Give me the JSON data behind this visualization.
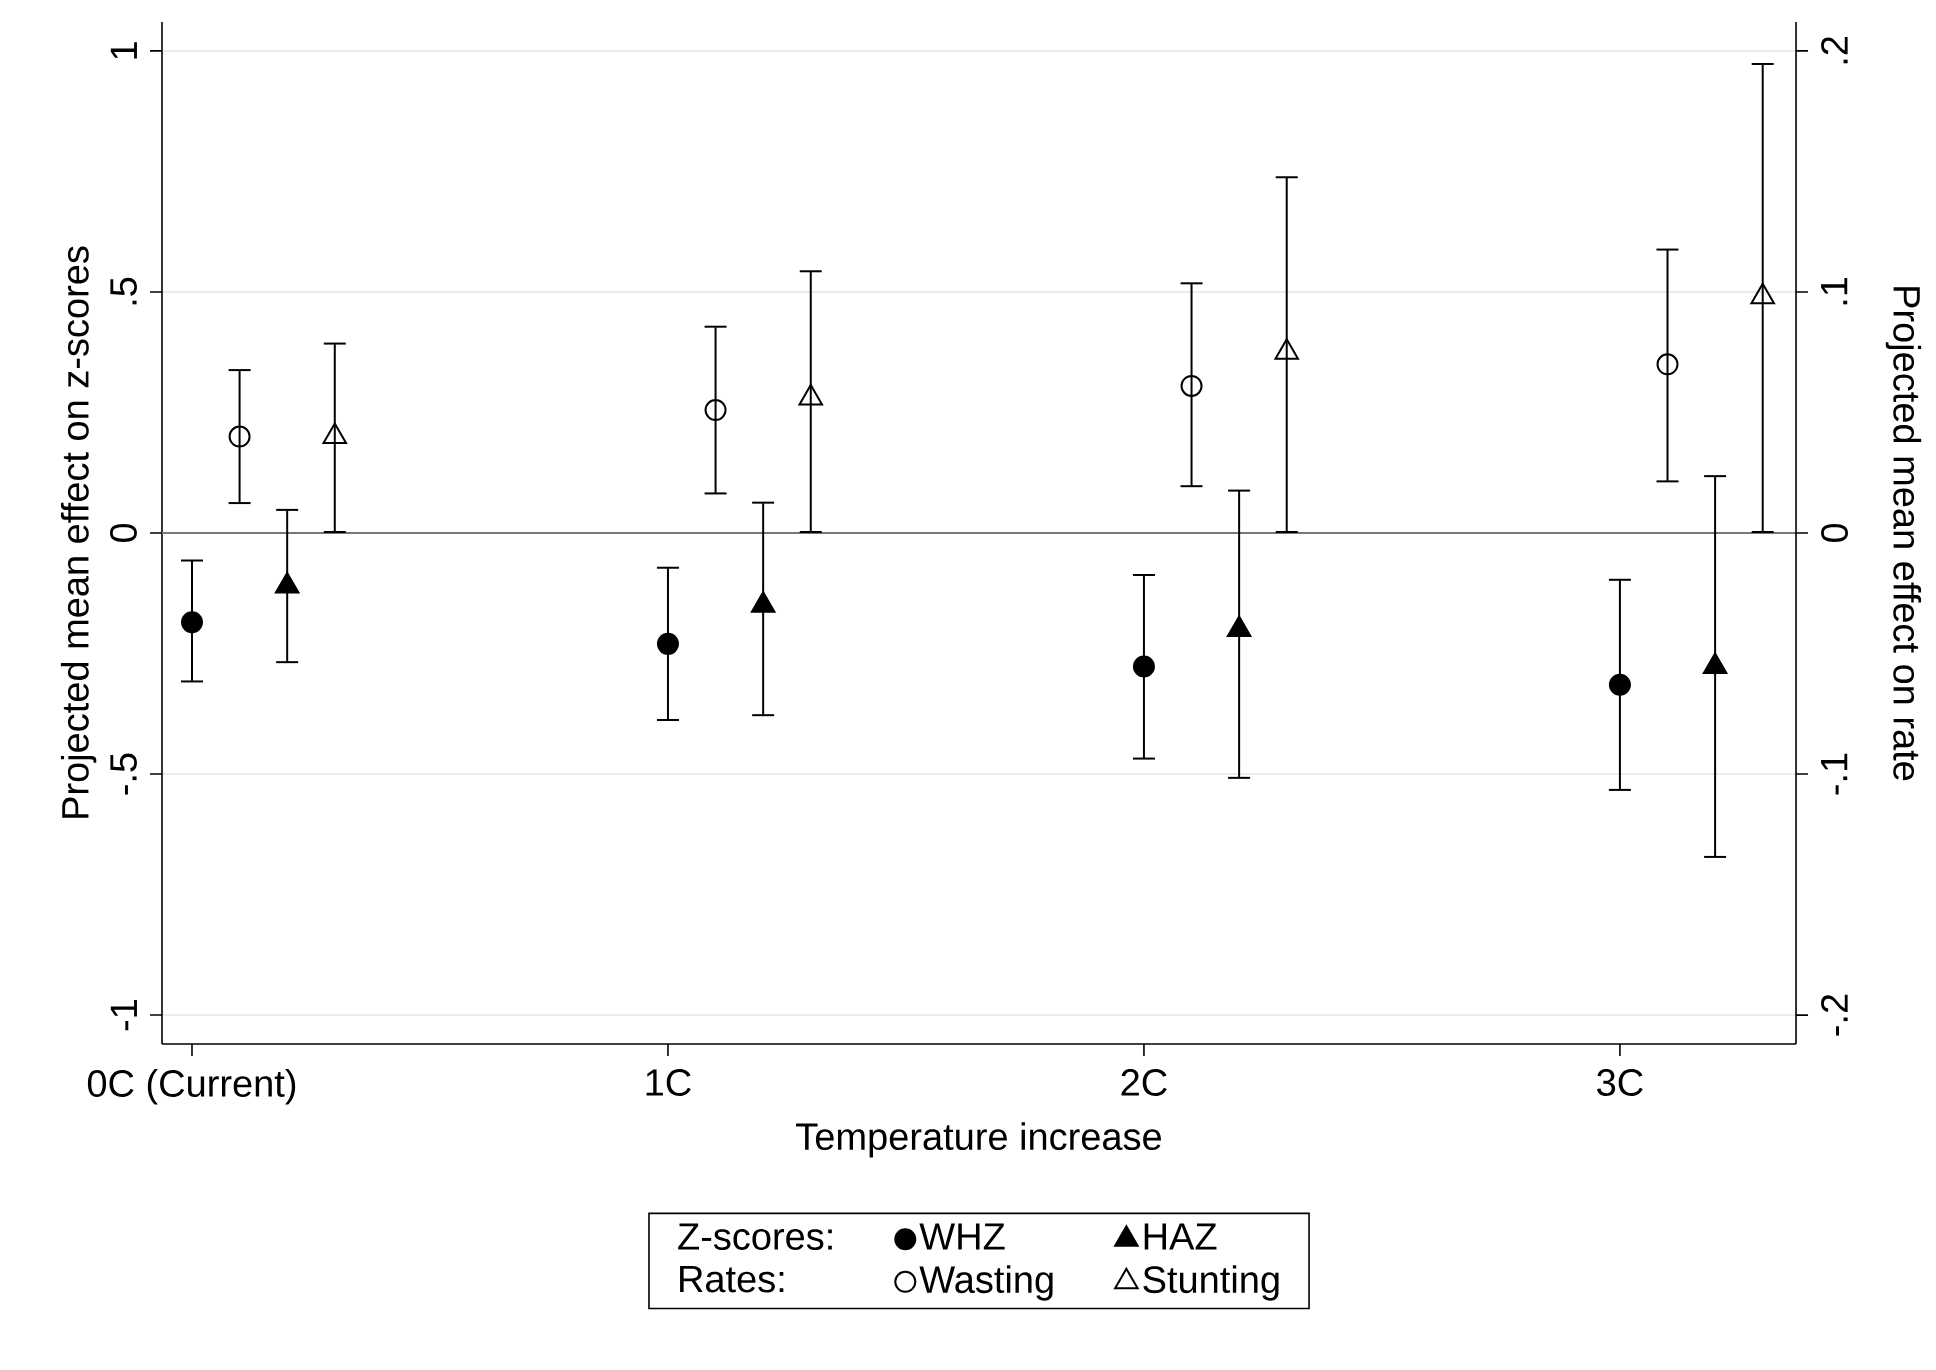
{
  "chart_data": {
    "type": "scatter",
    "xlabel": "Temperature increase",
    "ylabel": "Projected mean effect on z-scores",
    "y2label": "Projected mean effect on rate",
    "xlim": [
      -0.063,
      3.37
    ],
    "xticks": [
      {
        "value": 0,
        "label": "0C (Current)"
      },
      {
        "value": 1,
        "label": "1C"
      },
      {
        "value": 2,
        "label": "2C"
      },
      {
        "value": 3,
        "label": "3C"
      }
    ],
    "ylim": [
      -1.06,
      1.06
    ],
    "yticks": [
      {
        "value": -1,
        "label": "-1"
      },
      {
        "value": -0.5,
        "label": "-.5"
      },
      {
        "value": 0,
        "label": "0"
      },
      {
        "value": 0.5,
        "label": ".5"
      },
      {
        "value": 1,
        "label": "1"
      }
    ],
    "y2lim": [
      -0.212,
      0.212
    ],
    "y2ticks": [
      {
        "value": -0.2,
        "label": "-.2"
      },
      {
        "value": -0.1,
        "label": "-.1"
      },
      {
        "value": 0,
        "label": "0"
      },
      {
        "value": 0.1,
        "label": ".1"
      },
      {
        "value": 0.2,
        "label": ".2"
      }
    ],
    "grid": "y",
    "legend": "bottom",
    "ref_lines": [
      {
        "axis": "y",
        "value": 0,
        "color": "#777777"
      }
    ],
    "annotations": [
      "Z-scores:",
      "Rates:"
    ],
    "series": [
      {
        "name": "WHZ",
        "color": "#000000",
        "marker": "circle",
        "x": [
          0,
          1,
          2,
          3
        ],
        "values": [
          -0.185,
          -0.23,
          -0.277,
          -0.315
        ],
        "errors": [
          [
            -0.31,
            -0.055
          ],
          [
            -0.39,
            -0.07
          ],
          [
            -0.47,
            -0.085
          ],
          [
            -0.535,
            -0.095
          ]
        ]
      },
      {
        "name": "HAZ",
        "color": "#000000",
        "marker": "triangle",
        "x": [
          0.2,
          1.2,
          2.2,
          3.2
        ],
        "values": [
          -0.11,
          -0.15,
          -0.2,
          -0.277
        ],
        "errors": [
          [
            -0.27,
            0.05
          ],
          [
            -0.38,
            0.065
          ],
          [
            -0.51,
            0.09
          ],
          [
            -0.674,
            0.12
          ]
        ]
      },
      {
        "name": "Wasting",
        "color": "#000000",
        "marker": "circle",
        "axis": "y2",
        "x": [
          0.1,
          1.1,
          2.1,
          3.1
        ],
        "values": [
          0.04,
          0.051,
          0.061,
          0.07
        ],
        "errors": [
          [
            0.012,
            0.068
          ],
          [
            0.016,
            0.086
          ],
          [
            0.019,
            0.104
          ],
          [
            0.021,
            0.118
          ]
        ]
      },
      {
        "name": "Stunting",
        "color": "#000000",
        "marker": "triangle",
        "axis": "y2",
        "x": [
          0.3,
          1.3,
          2.3,
          3.3
        ],
        "values": [
          0.04,
          0.056,
          0.075,
          0.098
        ],
        "errors": [
          [
            0,
            0.079
          ],
          [
            0,
            0.109
          ],
          [
            0,
            0.148
          ],
          [
            0,
            0.195
          ]
        ]
      }
    ]
  }
}
